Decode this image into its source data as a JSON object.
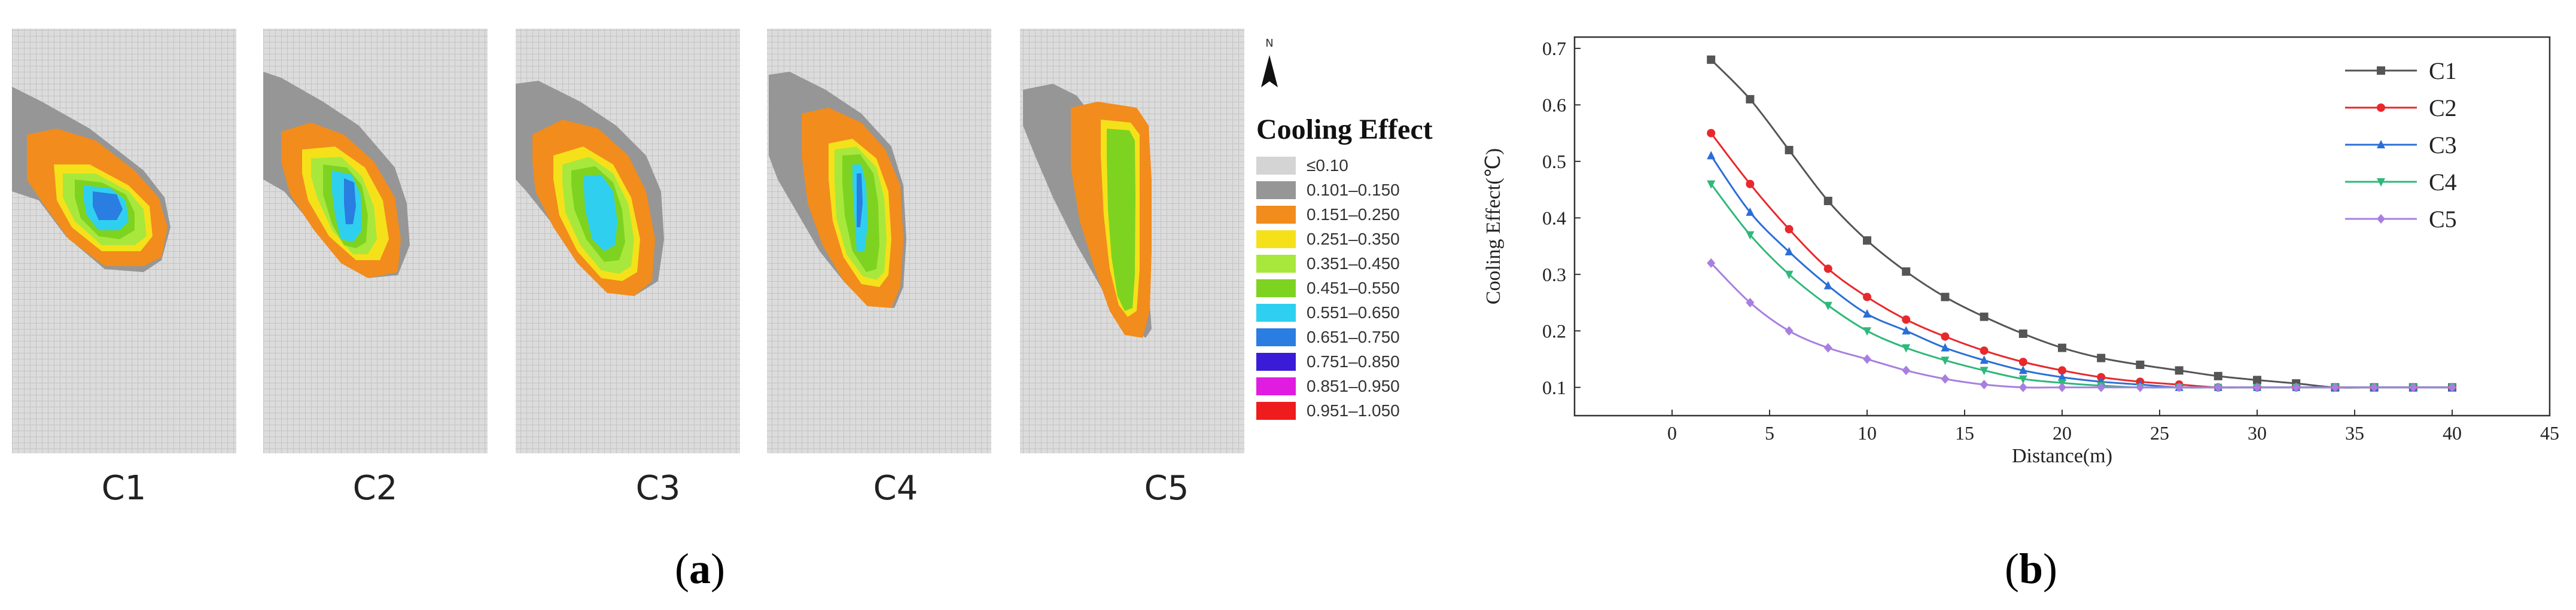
{
  "panel_a": {
    "caption_open": "(",
    "caption_letter": "a",
    "caption_close": ")",
    "maps": [
      {
        "label": "C1"
      },
      {
        "label": "C2"
      },
      {
        "label": "C3"
      },
      {
        "label": "C4"
      },
      {
        "label": "C5"
      }
    ],
    "north_label": "N",
    "legend": {
      "title": "Cooling Effect",
      "classes": [
        {
          "label": "≤0.10",
          "color": "#d4d4d4"
        },
        {
          "label": "0.101–0.150",
          "color": "#969696"
        },
        {
          "label": "0.151–0.250",
          "color": "#f28c1c"
        },
        {
          "label": "0.251–0.350",
          "color": "#f5e11a"
        },
        {
          "label": "0.351–0.450",
          "color": "#a8e83c"
        },
        {
          "label": "0.451–0.550",
          "color": "#7ed321"
        },
        {
          "label": "0.551–0.650",
          "color": "#2fd0ef"
        },
        {
          "label": "0.651–0.750",
          "color": "#2a7de1"
        },
        {
          "label": "0.751–0.850",
          "color": "#3a1cd8"
        },
        {
          "label": "0.851–0.950",
          "color": "#e01ce0"
        },
        {
          "label": "0.951–1.050",
          "color": "#ee1c1c"
        }
      ]
    }
  },
  "panel_b": {
    "caption_open": "(",
    "caption_letter": "b",
    "caption_close": ")"
  },
  "chart_data": {
    "type": "line",
    "title": "",
    "xlabel": "Distance(m)",
    "ylabel": "Cooling Effect(℃)",
    "xlim": [
      -5,
      45
    ],
    "ylim": [
      0.05,
      0.72
    ],
    "xticks": [
      0,
      5,
      10,
      15,
      20,
      25,
      30,
      35,
      40,
      45
    ],
    "yticks": [
      0.1,
      0.2,
      0.3,
      0.4,
      0.5,
      0.6,
      0.7
    ],
    "legend_position": "top-right",
    "grid": false,
    "series": [
      {
        "name": "C1",
        "color": "#555555",
        "marker": "square",
        "x": [
          2,
          4,
          6,
          8,
          10,
          12,
          14,
          16,
          18,
          20,
          22,
          24,
          26,
          28,
          30,
          32,
          34,
          36,
          38,
          40
        ],
        "y": [
          0.68,
          0.61,
          0.52,
          0.43,
          0.36,
          0.305,
          0.26,
          0.225,
          0.195,
          0.17,
          0.152,
          0.14,
          0.13,
          0.12,
          0.113,
          0.107,
          0.1,
          0.1,
          0.1,
          0.1
        ]
      },
      {
        "name": "C2",
        "color": "#e8282b",
        "marker": "circle",
        "x": [
          2,
          4,
          6,
          8,
          10,
          12,
          14,
          16,
          18,
          20,
          22,
          24,
          26,
          28,
          30,
          32,
          34,
          36,
          38,
          40
        ],
        "y": [
          0.55,
          0.46,
          0.38,
          0.31,
          0.26,
          0.22,
          0.19,
          0.165,
          0.145,
          0.13,
          0.118,
          0.11,
          0.105,
          0.1,
          0.1,
          0.1,
          0.1,
          0.1,
          0.1,
          0.1
        ]
      },
      {
        "name": "C3",
        "color": "#2a6fd6",
        "marker": "triangle-up",
        "x": [
          2,
          4,
          6,
          8,
          10,
          12,
          14,
          16,
          18,
          20,
          22,
          24,
          26,
          28,
          30,
          32,
          34,
          36,
          38,
          40
        ],
        "y": [
          0.51,
          0.41,
          0.34,
          0.28,
          0.23,
          0.2,
          0.17,
          0.148,
          0.13,
          0.118,
          0.11,
          0.105,
          0.1,
          0.1,
          0.1,
          0.1,
          0.1,
          0.1,
          0.1,
          0.1
        ]
      },
      {
        "name": "C4",
        "color": "#2fb87a",
        "marker": "triangle-down",
        "x": [
          2,
          4,
          6,
          8,
          10,
          12,
          14,
          16,
          18,
          20,
          22,
          24,
          26,
          28,
          30,
          32,
          34,
          36,
          38,
          40
        ],
        "y": [
          0.46,
          0.37,
          0.3,
          0.245,
          0.2,
          0.17,
          0.148,
          0.13,
          0.115,
          0.108,
          0.103,
          0.1,
          0.1,
          0.1,
          0.1,
          0.1,
          0.1,
          0.1,
          0.1,
          0.1
        ]
      },
      {
        "name": "C5",
        "color": "#a77fe0",
        "marker": "diamond",
        "x": [
          2,
          4,
          6,
          8,
          10,
          12,
          14,
          16,
          18,
          20,
          22,
          24,
          26,
          28,
          30,
          32,
          34,
          36,
          38,
          40
        ],
        "y": [
          0.32,
          0.25,
          0.2,
          0.17,
          0.15,
          0.13,
          0.115,
          0.105,
          0.1,
          0.1,
          0.1,
          0.1,
          0.1,
          0.1,
          0.1,
          0.1,
          0.1,
          0.1,
          0.1,
          0.1
        ]
      }
    ]
  }
}
